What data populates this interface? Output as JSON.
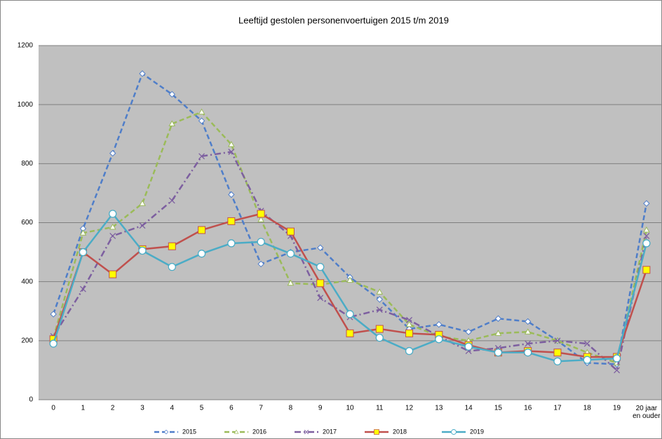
{
  "chart_data": {
    "type": "line",
    "title": "Leeftijd gestolen personenvoertuigen 2015 t/m 2019",
    "categories": [
      "0",
      "1",
      "2",
      "3",
      "4",
      "5",
      "6",
      "7",
      "8",
      "9",
      "10",
      "11",
      "12",
      "13",
      "14",
      "15",
      "16",
      "17",
      "18",
      "19",
      "20 jaar en ouder"
    ],
    "ylim": [
      0,
      1200
    ],
    "yticks": [
      0,
      200,
      400,
      600,
      800,
      1000,
      1200
    ],
    "grid": true,
    "background": "#c0c0c0",
    "legend": "bottom",
    "series": [
      {
        "name": "2015",
        "color": "#4f7ec9",
        "line_style": "dashed",
        "marker": "diamond",
        "values": [
          290,
          580,
          835,
          1105,
          1035,
          945,
          695,
          460,
          500,
          515,
          415,
          340,
          240,
          255,
          230,
          275,
          265,
          200,
          125,
          120,
          665
        ]
      },
      {
        "name": "2016",
        "color": "#9bbb59",
        "line_style": "dashed",
        "marker": "triangle",
        "values": [
          210,
          565,
          585,
          665,
          935,
          975,
          865,
          610,
          395,
          390,
          405,
          365,
          255,
          215,
          200,
          225,
          230,
          200,
          160,
          125,
          575
        ]
      },
      {
        "name": "2017",
        "color": "#7d5fa0",
        "line_style": "dashdot",
        "marker": "cross",
        "values": [
          215,
          375,
          555,
          590,
          675,
          825,
          840,
          640,
          555,
          345,
          280,
          305,
          270,
          215,
          165,
          175,
          190,
          200,
          190,
          100,
          555
        ]
      },
      {
        "name": "2018",
        "color": "#c0504d",
        "line_style": "solid",
        "marker": "square",
        "values": [
          205,
          500,
          425,
          510,
          520,
          575,
          605,
          630,
          570,
          395,
          225,
          240,
          225,
          220,
          185,
          160,
          165,
          160,
          145,
          145,
          440
        ]
      },
      {
        "name": "2019",
        "color": "#4bacc6",
        "line_style": "solid",
        "marker": "circle",
        "values": [
          190,
          500,
          630,
          505,
          450,
          495,
          530,
          535,
          495,
          450,
          290,
          210,
          165,
          205,
          180,
          160,
          160,
          130,
          135,
          140,
          530
        ]
      }
    ]
  }
}
